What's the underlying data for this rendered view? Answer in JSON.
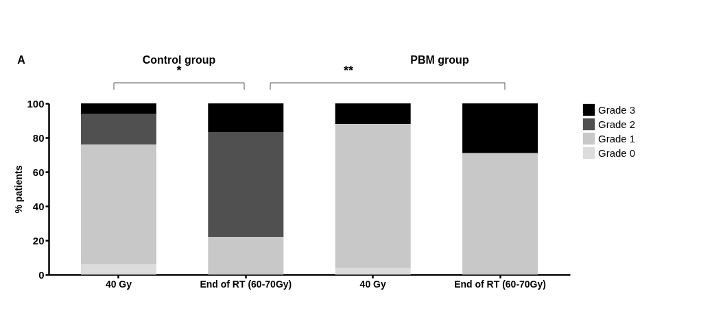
{
  "chart_data": {
    "type": "bar",
    "stacked": true,
    "annotations": [
      "A",
      "Control group",
      "PBM group",
      "*",
      "**"
    ],
    "categories": [
      "40 Gy",
      "End of RT (60-70Gy)",
      "40 Gy",
      "End of RT (60-70Gy)"
    ],
    "ylabel": "% patients",
    "series": [
      {
        "name": "Grade 0",
        "color": "#dcdcdc",
        "values": [
          6,
          0,
          4,
          0
        ]
      },
      {
        "name": "Grade 1",
        "color": "#c8c8c8",
        "values": [
          70,
          22,
          84,
          71
        ]
      },
      {
        "name": "Grade 2",
        "color": "#505050",
        "values": [
          18,
          61,
          0,
          0
        ]
      },
      {
        "name": "Grade 3",
        "color": "#000000",
        "values": [
          6,
          17,
          12,
          29
        ]
      }
    ],
    "ylim": [
      0,
      100
    ],
    "yticks": [
      0,
      20,
      40,
      60,
      80,
      100
    ],
    "grid": false,
    "legend": "top right"
  }
}
